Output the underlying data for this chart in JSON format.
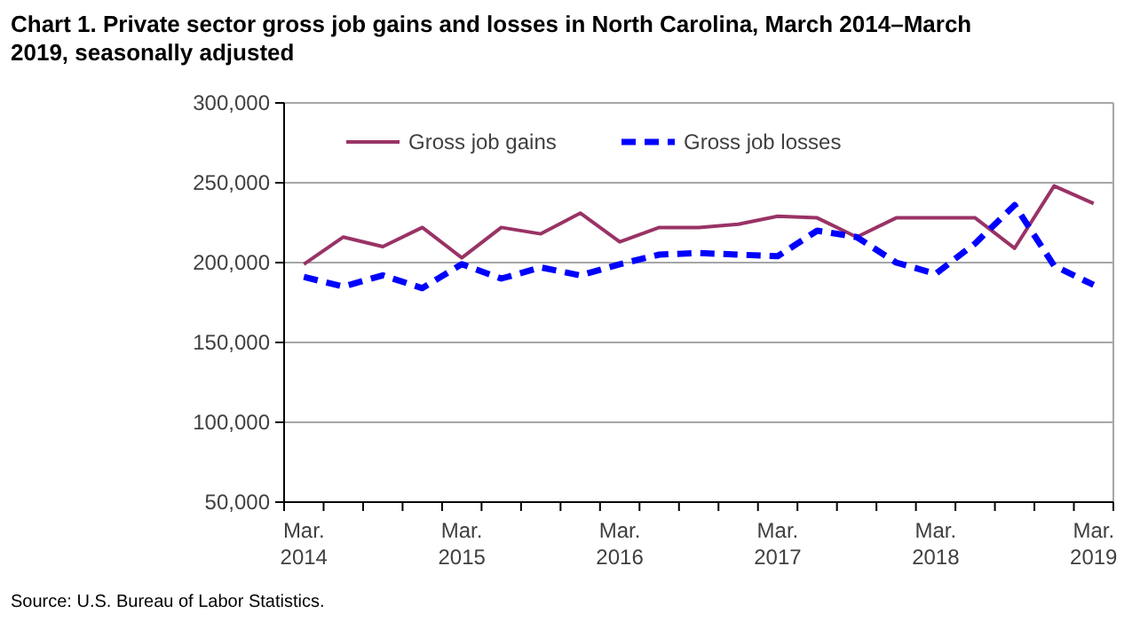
{
  "chart_data": {
    "type": "line",
    "title": "Chart 1. Private sector gross  job gains and losses  in North Carolina, March 2014–March 2019, seasonally adjusted",
    "categories": [
      "Mar.\n2014",
      null,
      null,
      null,
      "Mar.\n2015",
      null,
      null,
      null,
      "Mar.\n2016",
      null,
      null,
      null,
      "Mar.\n2017",
      null,
      null,
      null,
      "Mar.\n2018",
      null,
      null,
      null,
      "Mar.\n2019"
    ],
    "series": [
      {
        "name": "Gross job gains",
        "color": "#993366",
        "line_style": "solid",
        "values": [
          199000,
          216000,
          210000,
          222000,
          203000,
          222000,
          218000,
          231000,
          213000,
          222000,
          222000,
          224000,
          229000,
          228000,
          216000,
          228000,
          228000,
          228000,
          209000,
          248000,
          237000
        ]
      },
      {
        "name": "Gross job losses",
        "color": "#0000ff",
        "line_style": "dashed",
        "values": [
          191000,
          185000,
          192000,
          184000,
          199000,
          190000,
          197000,
          192000,
          199000,
          205000,
          206000,
          205000,
          204000,
          220000,
          216000,
          200000,
          193000,
          212000,
          236000,
          198000,
          186000
        ]
      }
    ],
    "ylim": [
      50000,
      300000
    ],
    "yticks": [
      {
        "value": 50000,
        "label": "50,000"
      },
      {
        "value": 100000,
        "label": "100,000"
      },
      {
        "value": 150000,
        "label": "150,000"
      },
      {
        "value": 200000,
        "label": "200,000"
      },
      {
        "value": 250000,
        "label": "250,000"
      },
      {
        "value": 300000,
        "label": "300,000"
      }
    ],
    "grid": "y",
    "legend": "top",
    "annotations": [
      "Source: U.S. Bureau of Labor Statistics."
    ]
  }
}
